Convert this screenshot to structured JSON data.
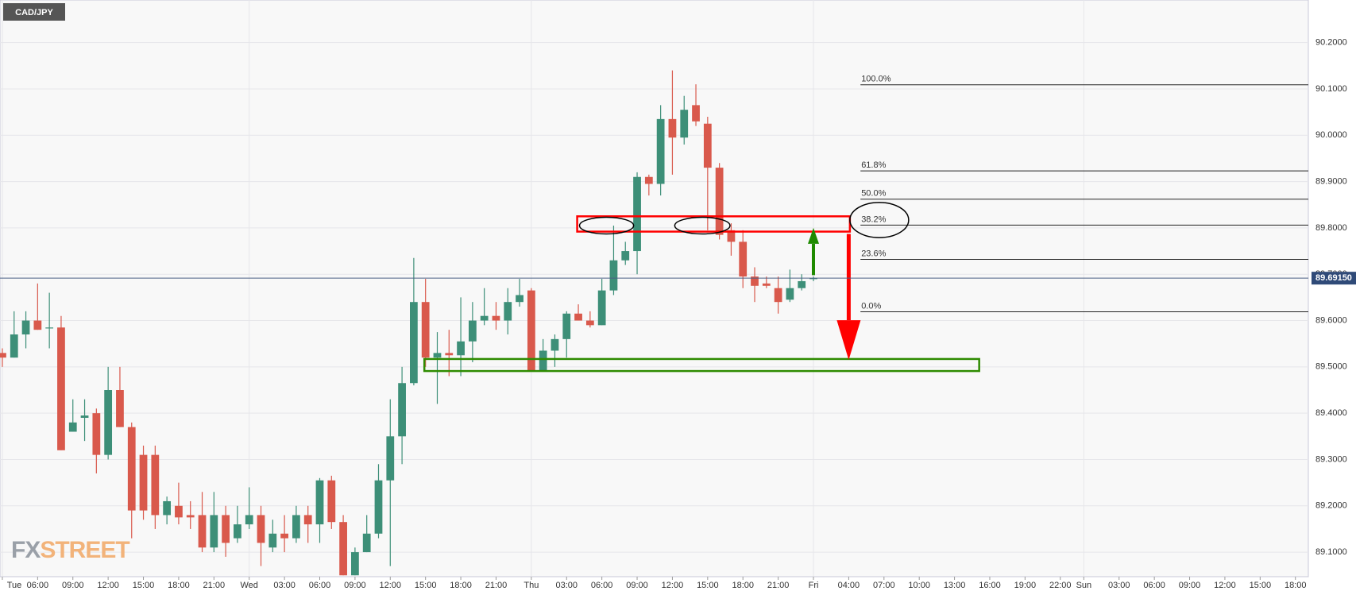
{
  "chart_data": {
    "type": "candlestick",
    "title": "CAD/JPY",
    "x": [
      3,
      4,
      5,
      6,
      7,
      8,
      9,
      10,
      11,
      12,
      13,
      14,
      15,
      16,
      17,
      18,
      19,
      20,
      21,
      22,
      23,
      24,
      25,
      26,
      27,
      28,
      29,
      30,
      31,
      32,
      33,
      34,
      35,
      36,
      37,
      38,
      39,
      40,
      41,
      42,
      43,
      44,
      45,
      46,
      47,
      48,
      49,
      50,
      51,
      52,
      53,
      54,
      55,
      56,
      57,
      58,
      59,
      60,
      61,
      62,
      63,
      64,
      65,
      66,
      67,
      68,
      69,
      70,
      71,
      72
    ],
    "open": [
      89.53,
      89.52,
      89.57,
      89.6,
      89.585,
      89.585,
      89.36,
      89.39,
      89.4,
      89.31,
      89.45,
      89.37,
      89.31,
      89.31,
      89.18,
      89.2,
      89.18,
      89.18,
      89.11,
      89.18,
      89.13,
      89.16,
      89.18,
      89.11,
      89.14,
      89.13,
      89.18,
      89.16,
      89.255,
      89.165,
      89.05,
      89.1,
      89.14,
      89.255,
      89.35,
      89.465,
      89.64,
      89.52,
      89.53,
      89.525,
      89.555,
      89.6,
      89.61,
      89.6,
      89.64,
      89.665,
      89.49,
      89.535,
      89.56,
      89.615,
      89.6,
      89.59,
      89.665,
      89.73,
      89.75,
      89.91,
      89.895,
      90.035,
      89.995,
      90.065,
      90.025,
      89.93,
      89.795,
      89.77,
      89.695,
      89.68,
      89.67,
      89.645,
      89.67,
      89.69
    ],
    "high": [
      89.54,
      89.62,
      89.62,
      89.68,
      89.66,
      89.61,
      89.43,
      89.43,
      89.41,
      89.5,
      89.5,
      89.38,
      89.33,
      89.33,
      89.22,
      89.25,
      89.21,
      89.23,
      89.23,
      89.2,
      89.2,
      89.24,
      89.2,
      89.17,
      89.18,
      89.2,
      89.2,
      89.26,
      89.265,
      89.18,
      89.11,
      89.18,
      89.29,
      89.43,
      89.5,
      89.735,
      89.69,
      89.575,
      89.58,
      89.65,
      89.64,
      89.67,
      89.64,
      89.67,
      89.69,
      89.67,
      89.56,
      89.57,
      89.62,
      89.635,
      89.62,
      89.69,
      89.805,
      89.77,
      89.92,
      89.915,
      90.065,
      90.14,
      90.085,
      90.11,
      90.04,
      89.94,
      89.81,
      89.795,
      89.715,
      89.695,
      89.695,
      89.71,
      89.7,
      89.695
    ],
    "low": [
      89.5,
      89.52,
      89.54,
      89.58,
      89.54,
      89.32,
      89.36,
      89.34,
      89.27,
      89.3,
      89.37,
      89.13,
      89.17,
      89.15,
      89.16,
      89.16,
      89.15,
      89.1,
      89.1,
      89.09,
      89.12,
      89.15,
      89.07,
      89.1,
      89.1,
      89.12,
      89.12,
      89.12,
      89.15,
      89.05,
      89.05,
      89.1,
      89.13,
      89.07,
      89.29,
      89.46,
      89.5,
      89.42,
      89.48,
      89.48,
      89.51,
      89.59,
      89.58,
      89.57,
      89.63,
      89.49,
      89.49,
      89.5,
      89.52,
      89.6,
      89.585,
      89.59,
      89.655,
      89.72,
      89.7,
      89.87,
      89.87,
      89.915,
      89.98,
      90.02,
      89.795,
      89.775,
      89.74,
      89.67,
      89.64,
      89.67,
      89.615,
      89.64,
      89.665,
      89.685
    ],
    "close": [
      89.52,
      89.57,
      89.6,
      89.58,
      89.585,
      89.32,
      89.38,
      89.395,
      89.31,
      89.45,
      89.37,
      89.19,
      89.19,
      89.18,
      89.21,
      89.175,
      89.175,
      89.11,
      89.18,
      89.12,
      89.16,
      89.18,
      89.12,
      89.14,
      89.13,
      89.18,
      89.16,
      89.255,
      89.165,
      89.05,
      89.1,
      89.14,
      89.255,
      89.35,
      89.465,
      89.64,
      89.52,
      89.53,
      89.525,
      89.555,
      89.6,
      89.61,
      89.6,
      89.64,
      89.655,
      89.49,
      89.535,
      89.56,
      89.615,
      89.6,
      89.59,
      89.665,
      89.73,
      89.75,
      89.91,
      89.895,
      90.035,
      89.995,
      90.055,
      90.03,
      89.93,
      89.785,
      89.77,
      89.695,
      89.675,
      89.675,
      89.64,
      89.67,
      89.685,
      89.6915
    ],
    "up_color": "#3d8f78",
    "down_color": "#d9594c",
    "xlim": [
      2.8,
      114.1
    ],
    "xticks": [
      {
        "value": 3,
        "label": "Tue"
      },
      {
        "value": 6,
        "label": "06:00"
      },
      {
        "value": 9,
        "label": "09:00"
      },
      {
        "value": 12,
        "label": "12:00"
      },
      {
        "value": 15,
        "label": "15:00"
      },
      {
        "value": 18,
        "label": "18:00"
      },
      {
        "value": 21,
        "label": "21:00"
      },
      {
        "value": 24,
        "label": "Wed"
      },
      {
        "value": 27,
        "label": "03:00"
      },
      {
        "value": 30,
        "label": "06:00"
      },
      {
        "value": 33,
        "label": "09:00"
      },
      {
        "value": 36,
        "label": "12:00"
      },
      {
        "value": 39,
        "label": "15:00"
      },
      {
        "value": 42,
        "label": "18:00"
      },
      {
        "value": 45,
        "label": "21:00"
      },
      {
        "value": 48,
        "label": "Thu"
      },
      {
        "value": 51,
        "label": "03:00"
      },
      {
        "value": 54,
        "label": "06:00"
      },
      {
        "value": 57,
        "label": "09:00"
      },
      {
        "value": 60,
        "label": "12:00"
      },
      {
        "value": 63,
        "label": "15:00"
      },
      {
        "value": 66,
        "label": "18:00"
      },
      {
        "value": 69,
        "label": "21:00"
      },
      {
        "value": 72,
        "label": "Fri"
      },
      {
        "value": 75,
        "label": "04:00"
      },
      {
        "value": 78,
        "label": "07:00"
      },
      {
        "value": 81,
        "label": "10:00"
      },
      {
        "value": 84,
        "label": "13:00"
      },
      {
        "value": 87,
        "label": "16:00"
      },
      {
        "value": 90,
        "label": "19:00"
      },
      {
        "value": 93,
        "label": "22:00"
      },
      {
        "value": 95,
        "label": "Sun"
      },
      {
        "value": 98,
        "label": "03:00"
      },
      {
        "value": 101,
        "label": "06:00"
      },
      {
        "value": 104,
        "label": "09:00"
      },
      {
        "value": 107,
        "label": "12:00"
      },
      {
        "value": 110,
        "label": "15:00"
      },
      {
        "value": 113,
        "label": "18:00"
      }
    ],
    "ylim": [
      89.047,
      90.292
    ],
    "yticks": [
      {
        "value": 89.1,
        "label": "89.1000"
      },
      {
        "value": 89.2,
        "label": "89.2000"
      },
      {
        "value": 89.3,
        "label": "89.3000"
      },
      {
        "value": 89.4,
        "label": "89.4000"
      },
      {
        "value": 89.5,
        "label": "89.5000"
      },
      {
        "value": 89.6,
        "label": "89.6000"
      },
      {
        "value": 89.7,
        "label": "89.7000"
      },
      {
        "value": 89.8,
        "label": "89.8000"
      },
      {
        "value": 89.9,
        "label": "89.9000"
      },
      {
        "value": 90,
        "label": "90.0000"
      },
      {
        "value": 90.1,
        "label": "90.1000"
      },
      {
        "value": 90.2,
        "label": "90.2000"
      }
    ],
    "grid": true,
    "last_price": {
      "value": 89.6915,
      "label": "89.69150"
    },
    "fibonacci": {
      "from": 76,
      "level_labels": [
        "100.0%",
        "61.8%",
        "50.0%",
        "38.2%",
        "23.6%",
        "0.0%"
      ],
      "prices": [
        90.109,
        89.923,
        89.862,
        89.806,
        89.732,
        89.619
      ]
    },
    "drawings": [
      {
        "shape": "rect",
        "color": "#ff0000",
        "x": [
          51.9,
          75.1
        ],
        "y": [
          89.792,
          89.825
        ]
      },
      {
        "shape": "rect",
        "color": "#2e8b00",
        "x": [
          38.9,
          86.1
        ],
        "y": [
          89.491,
          89.517
        ]
      },
      {
        "shape": "ellipse",
        "color": "#000000",
        "x": [
          52.1,
          56.7
        ],
        "y": [
          89.787,
          89.823
        ]
      },
      {
        "shape": "ellipse",
        "color": "#000000",
        "x": [
          60.2,
          64.9
        ],
        "y": [
          89.787,
          89.823
        ]
      },
      {
        "shape": "ellipse",
        "color": "#000000",
        "x": [
          75.1,
          80.1
        ],
        "y": [
          89.779,
          89.855
        ]
      },
      {
        "shape": "arrow",
        "color": "#1e8a00",
        "x": [
          72,
          72
        ],
        "y": [
          89.698,
          89.8
        ]
      },
      {
        "shape": "arrow",
        "color": "#ff0000",
        "x": [
          75,
          75
        ],
        "y": [
          89.787,
          89.515
        ]
      }
    ],
    "watermark": [
      "FX",
      "STREET"
    ]
  }
}
